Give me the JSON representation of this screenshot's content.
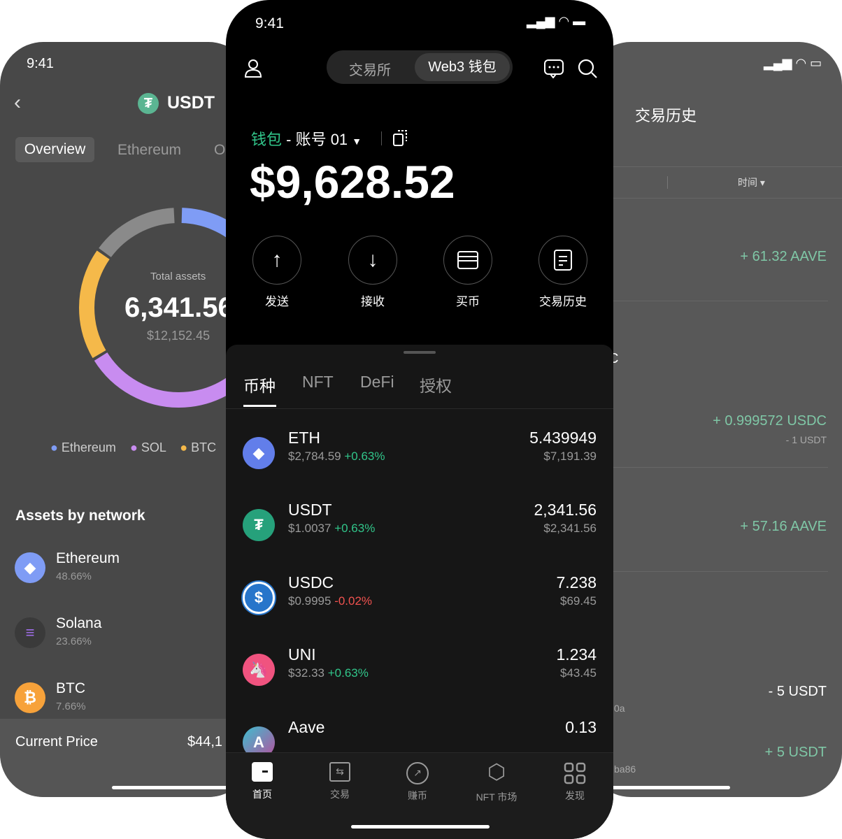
{
  "left_phone": {
    "time": "9:41",
    "title": "USDT",
    "tabs": [
      "Overview",
      "Ethereum",
      "O"
    ],
    "total_label": "Total assets",
    "total_value": "6,341.56",
    "total_usd": "$12,152.45",
    "legend": [
      {
        "label": "Ethereum",
        "color": "#7f9cf5"
      },
      {
        "label": "SOL",
        "color": "#c88cf0"
      },
      {
        "label": "BTC",
        "color": "#f5b94a"
      }
    ],
    "section_title": "Assets by network",
    "networks": [
      {
        "name": "Ethereum",
        "pct": "48.66%"
      },
      {
        "name": "Solana",
        "pct": "23.66%"
      },
      {
        "name": "BTC",
        "pct": "7.66%"
      }
    ],
    "current_price_label": "Current Price",
    "current_price_value": "$44,1"
  },
  "right_phone": {
    "title": "交易历史",
    "filter": "时间",
    "rows": [
      {
        "amount": "+ 61.32 AAVE",
        "sub": ""
      },
      {
        "amount": "+ 0.999572 USDC",
        "sub": "- 1 USDT"
      },
      {
        "amount": "+ 57.16 AAVE",
        "sub": ""
      },
      {
        "amount": "- 5 USDT",
        "sub": ""
      },
      {
        "amount": "+ 5 USDT",
        "sub": ""
      }
    ],
    "frag_c": "C",
    "frag_0a": "0a",
    "frag_ba86": "ba86"
  },
  "center_phone": {
    "time": "9:41",
    "segments": [
      "交易所",
      "Web3 钱包"
    ],
    "wallet_label": "钱包",
    "account": "- 账号 01",
    "balance": "$9,628.52",
    "actions": [
      "发送",
      "接收",
      "买币",
      "交易历史"
    ],
    "tabs": [
      "币种",
      "NFT",
      "DeFi",
      "授权"
    ],
    "tokens": [
      {
        "symbol": "ETH",
        "price": "$2,784.59",
        "change": "+0.63%",
        "amount": "5.439949",
        "value": "$7,191.39",
        "color": "#627eea",
        "dir": "up"
      },
      {
        "symbol": "USDT",
        "price": "$1.0037",
        "change": "+0.63%",
        "amount": "2,341.56",
        "value": "$2,341.56",
        "color": "#26a17b",
        "dir": "up"
      },
      {
        "symbol": "USDC",
        "price": "$0.9995",
        "change": "-0.02%",
        "amount": "7.238",
        "value": "$69.45",
        "color": "#2775ca",
        "dir": "down"
      },
      {
        "symbol": "UNI",
        "price": "$32.33",
        "change": "+0.63%",
        "amount": "1.234",
        "value": "$43.45",
        "color": "#ff007a",
        "dir": "up"
      },
      {
        "symbol": "Aave",
        "price": "",
        "change": "",
        "amount": "0.13",
        "value": "",
        "color": "#b6509e",
        "dir": "up"
      }
    ],
    "nav": [
      "首页",
      "交易",
      "赚币",
      "NFT 市场",
      "发现"
    ]
  }
}
